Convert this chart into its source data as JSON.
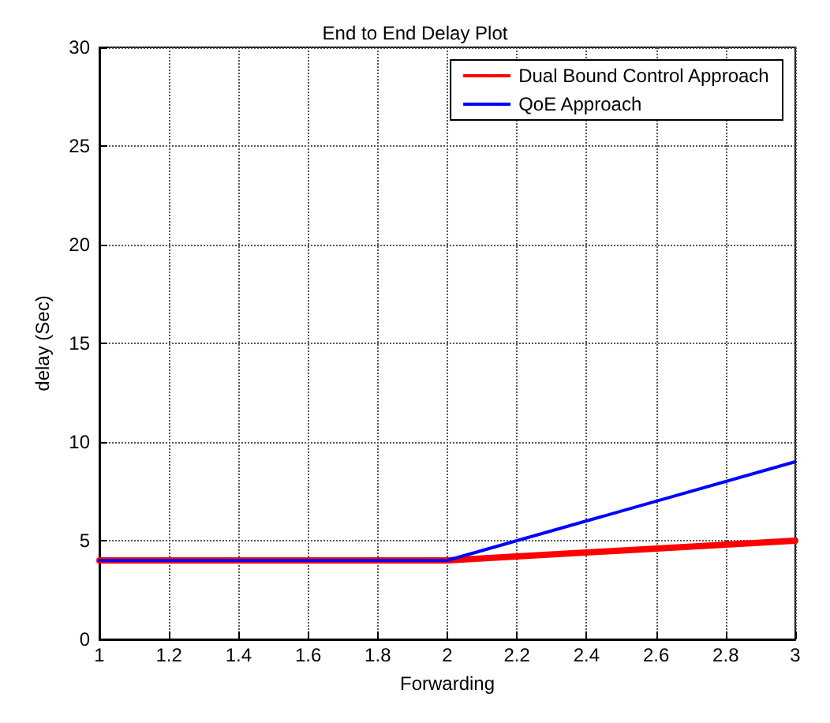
{
  "chart_data": {
    "type": "line",
    "title": "End to End Delay Plot",
    "xlabel": "Forwarding",
    "ylabel": "delay (Sec)",
    "x": [
      1,
      2,
      3
    ],
    "series": [
      {
        "name": "Dual Bound Control Approach",
        "color": "#ff0000",
        "values": [
          4,
          4,
          5
        ]
      },
      {
        "name": "QoE Approach",
        "color": "#0000ff",
        "values": [
          4,
          4,
          9
        ]
      }
    ],
    "xlim": [
      1,
      3
    ],
    "xticks": [
      1,
      1.2,
      1.4,
      1.6,
      1.8,
      2,
      2.2,
      2.4,
      2.6,
      2.8,
      3
    ],
    "ylim": [
      0,
      30
    ],
    "yticks": [
      0,
      5,
      10,
      15,
      20,
      25,
      30
    ],
    "grid": true,
    "legend": "top right",
    "marker": "none",
    "line_style": "solid"
  }
}
